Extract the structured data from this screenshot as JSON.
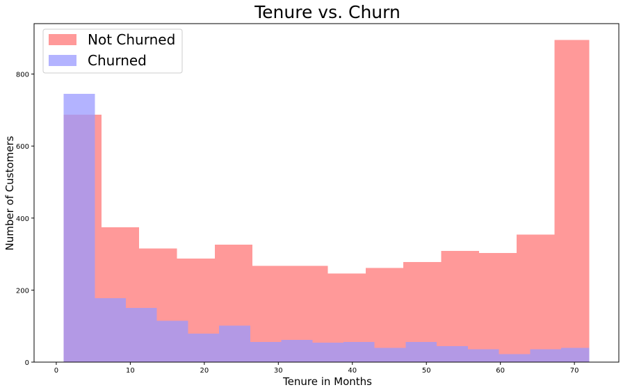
{
  "chart_data": {
    "type": "bar",
    "title": "Tenure vs. Churn",
    "xlabel": "Tenure in Months",
    "ylabel": "Number of Customers",
    "xlim": [
      -3,
      76
    ],
    "ylim": [
      0,
      940
    ],
    "xticks": [
      0,
      10,
      20,
      30,
      40,
      50,
      60,
      70
    ],
    "yticks": [
      0,
      200,
      400,
      600,
      800
    ],
    "legend_position": "top-left",
    "grid": false,
    "series": [
      {
        "name": "Not Churned",
        "color": "#ff9999",
        "bin_edges": [
          1,
          6.1,
          11.2,
          16.3,
          21.4,
          26.5,
          31.6,
          36.7,
          41.8,
          46.9,
          52.0,
          57.1,
          62.2,
          67.3,
          72.0
        ],
        "values": [
          687,
          374,
          316,
          288,
          326,
          267,
          267,
          246,
          262,
          278,
          309,
          303,
          354,
          895
        ]
      },
      {
        "name": "Churned",
        "color": "#9999ff",
        "bin_edges": [
          1,
          5.2,
          9.4,
          13.6,
          17.8,
          22.0,
          26.2,
          30.4,
          34.6,
          38.8,
          43.0,
          47.2,
          51.4,
          55.6,
          59.8,
          64.0,
          68.2,
          72.0
        ],
        "values": [
          745,
          178,
          151,
          115,
          79,
          101,
          56,
          62,
          54,
          56,
          40,
          56,
          44,
          36,
          22,
          36,
          40
        ]
      }
    ]
  }
}
